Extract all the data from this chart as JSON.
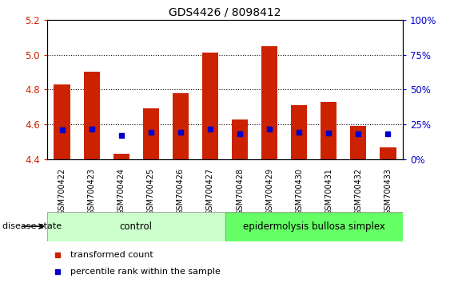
{
  "title": "GDS4426 / 8098412",
  "samples": [
    "GSM700422",
    "GSM700423",
    "GSM700424",
    "GSM700425",
    "GSM700426",
    "GSM700427",
    "GSM700428",
    "GSM700429",
    "GSM700430",
    "GSM700431",
    "GSM700432",
    "GSM700433"
  ],
  "transformed_count": [
    4.83,
    4.9,
    4.43,
    4.69,
    4.78,
    5.01,
    4.63,
    5.05,
    4.71,
    4.73,
    4.59,
    4.47
  ],
  "percentile_rank_left": [
    4.57,
    4.575,
    4.535,
    4.555,
    4.555,
    4.575,
    4.545,
    4.575,
    4.555,
    4.55,
    4.545,
    4.545
  ],
  "ylim_left": [
    4.4,
    5.2
  ],
  "ylim_right": [
    0,
    100
  ],
  "yticks_left": [
    4.4,
    4.6,
    4.8,
    5.0,
    5.2
  ],
  "yticks_right": [
    0,
    25,
    50,
    75,
    100
  ],
  "ytick_labels_right": [
    "0%",
    "25%",
    "50%",
    "75%",
    "100%"
  ],
  "grid_lines": [
    4.6,
    4.8,
    5.0
  ],
  "bar_base": 4.4,
  "bar_color": "#cc2200",
  "blue_marker_color": "#0000cc",
  "blue_marker_size": 5,
  "control_n": 6,
  "disease_n": 6,
  "control_label": "control",
  "disease_label": "epidermolysis bullosa simplex",
  "disease_state_label": "disease state",
  "legend_items": [
    "transformed count",
    "percentile rank within the sample"
  ],
  "control_color": "#ccffcc",
  "disease_color": "#66ff66",
  "left_tick_color": "#cc2200",
  "right_tick_color": "#0000cc",
  "bar_width": 0.55,
  "xlabels_bg_color": "#cccccc",
  "plot_area_bg": "#ffffff"
}
